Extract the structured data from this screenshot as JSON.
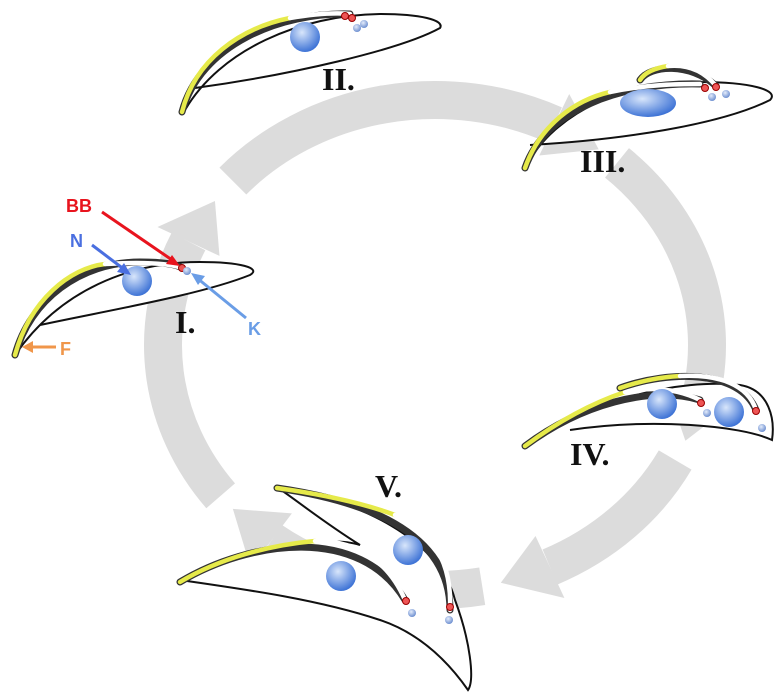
{
  "stages": [
    {
      "label": "I."
    },
    {
      "label": "II."
    },
    {
      "label": "III."
    },
    {
      "label": "IV."
    },
    {
      "label": "V."
    }
  ],
  "annotations": [
    {
      "label": "BB"
    },
    {
      "label": "N"
    },
    {
      "label": "K"
    },
    {
      "label": "F"
    }
  ]
}
